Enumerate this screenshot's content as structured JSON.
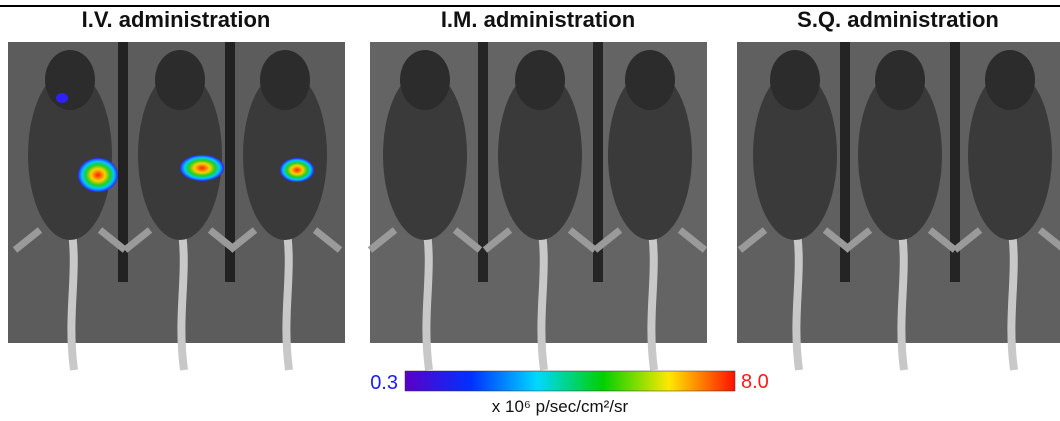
{
  "panels": [
    {
      "title": "I.V. administration"
    },
    {
      "title": "I.M. administration"
    },
    {
      "title": "S.Q. administration"
    }
  ],
  "colorbar": {
    "min": "0.3",
    "max": "8.0",
    "unit": "x 10⁶ p/sec/cm²/sr"
  }
}
